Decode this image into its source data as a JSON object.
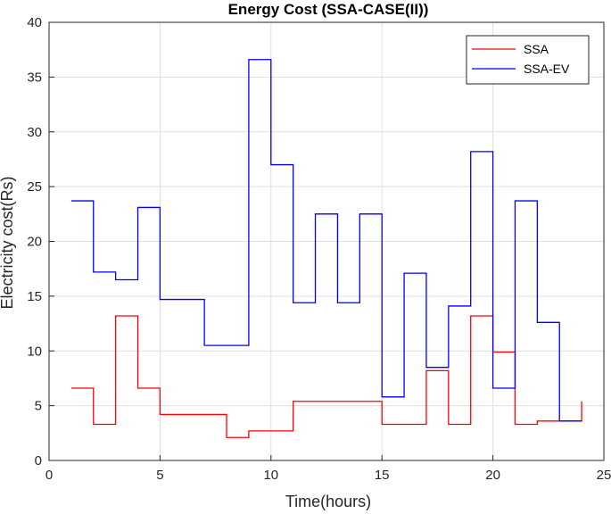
{
  "chart_data": {
    "type": "line",
    "step": true,
    "title": "Energy Cost (SSA-CASE(II))",
    "xlabel": "Time(hours)",
    "ylabel": "Electricity cost(Rs)",
    "xlim": [
      0,
      25
    ],
    "ylim": [
      0,
      40
    ],
    "xticks": [
      0,
      5,
      10,
      15,
      20,
      25
    ],
    "yticks": [
      0,
      5,
      10,
      15,
      20,
      25,
      30,
      35,
      40
    ],
    "grid": true,
    "legend_location": "top-right",
    "x": [
      1,
      2,
      3,
      4,
      5,
      6,
      7,
      8,
      9,
      10,
      11,
      12,
      13,
      14,
      15,
      16,
      17,
      18,
      19,
      20,
      21,
      22,
      23,
      24
    ],
    "series": [
      {
        "name": "SSA",
        "color": "#ff0000",
        "values": [
          6.6,
          3.3,
          13.2,
          6.6,
          4.2,
          4.2,
          4.2,
          2.1,
          2.7,
          2.7,
          5.4,
          5.4,
          5.4,
          5.4,
          3.3,
          3.3,
          8.2,
          3.3,
          13.2,
          9.9,
          3.3,
          3.6,
          3.6,
          5.4
        ]
      },
      {
        "name": "SSA-EV",
        "color": "#0000ff",
        "values": [
          23.7,
          17.2,
          16.5,
          23.1,
          14.7,
          14.7,
          10.5,
          10.5,
          36.6,
          27.0,
          14.4,
          22.5,
          14.4,
          22.5,
          5.8,
          17.1,
          8.5,
          14.1,
          28.2,
          6.6,
          23.7,
          12.6,
          3.6,
          3.6
        ]
      }
    ]
  },
  "colors": {
    "axis": "#262626",
    "grid": "#dfdfdf",
    "background": "#ffffff"
  }
}
